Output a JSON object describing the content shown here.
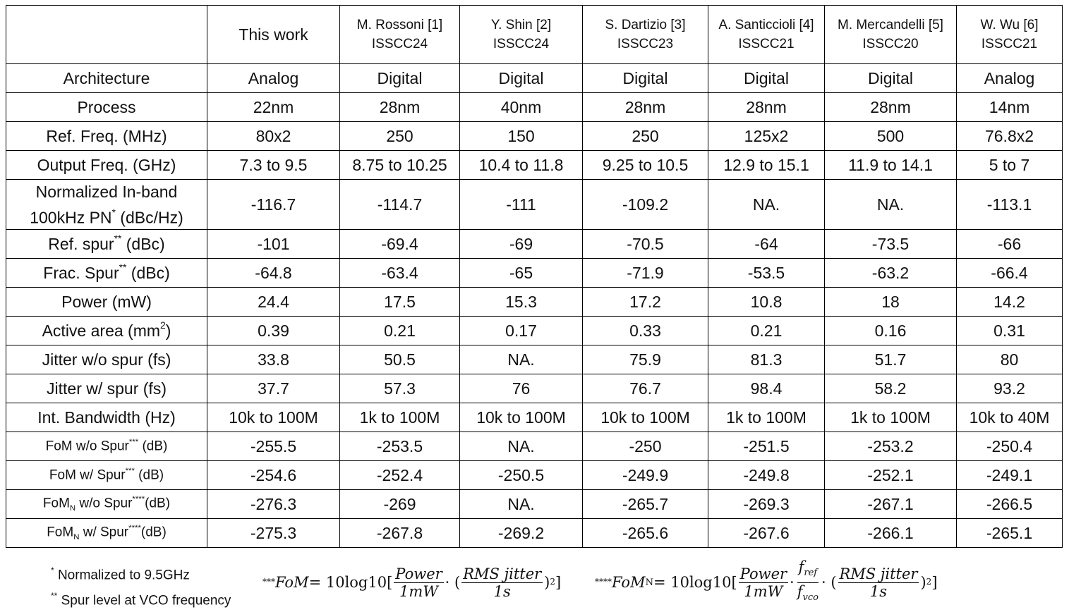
{
  "header": {
    "corner": "",
    "columns": [
      {
        "name": "This work",
        "venue": ""
      },
      {
        "name": "M. Rossoni [1]",
        "venue": "ISSCC24"
      },
      {
        "name": "Y. Shin [2]",
        "venue": "ISSCC24"
      },
      {
        "name": "S. Dartizio [3]",
        "venue": "ISSCC23"
      },
      {
        "name": "A. Santiccioli [4]",
        "venue": "ISSCC21"
      },
      {
        "name": "M. Mercandelli [5]",
        "venue": "ISSCC20"
      },
      {
        "name": "W. Wu [6]",
        "venue": "ISSCC21"
      }
    ]
  },
  "rows": {
    "architecture": {
      "label": "Architecture",
      "values": [
        "Analog",
        "Digital",
        "Digital",
        "Digital",
        "Digital",
        "Digital",
        "Analog"
      ]
    },
    "process": {
      "label": "Process",
      "values": [
        "22nm",
        "28nm",
        "40nm",
        "28nm",
        "28nm",
        "28nm",
        "14nm"
      ]
    },
    "ref_freq": {
      "label": "Ref. Freq. (MHz)",
      "values": [
        "80x2",
        "250",
        "150",
        "250",
        "125x2",
        "500",
        "76.8x2"
      ]
    },
    "output_freq": {
      "label": "Output Freq. (GHz)",
      "values": [
        "7.3 to 9.5",
        "8.75 to 10.25",
        "10.4 to 11.8",
        "9.25 to 10.5",
        "12.9 to 15.1",
        "11.9 to 14.1",
        "5 to 7"
      ]
    },
    "inband_pn": {
      "label_line1": "Normalized In-band",
      "label_line2_a": "100kHz PN",
      "label_mark": "*",
      "label_line2_b": " (dBc/Hz)",
      "values": [
        "-116.7",
        "-114.7",
        "-111",
        "-109.2",
        "NA.",
        "NA.",
        "-113.1"
      ]
    },
    "ref_spur": {
      "label_a": "Ref. spur",
      "label_mark": "**",
      "label_b": " (dBc)",
      "values": [
        "-101",
        "-69.4",
        "-69",
        "-70.5",
        "-64",
        "-73.5",
        "-66"
      ]
    },
    "frac_spur": {
      "label_a": "Frac. Spur",
      "label_mark": "**",
      "label_b": " (dBc)",
      "values": [
        "-64.8",
        "-63.4",
        "-65",
        "-71.9",
        "-53.5",
        "-63.2",
        "-66.4"
      ]
    },
    "power": {
      "label": "Power (mW)",
      "values": [
        "24.4",
        "17.5",
        "15.3",
        "17.2",
        "10.8",
        "18",
        "14.2"
      ]
    },
    "area": {
      "label_a": "Active area (mm",
      "label_sup": "2",
      "label_b": ")",
      "values": [
        "0.39",
        "0.21",
        "0.17",
        "0.33",
        "0.21",
        "0.16",
        "0.31"
      ]
    },
    "jitter_wo": {
      "label": "Jitter w/o spur (fs)",
      "values": [
        "33.8",
        "50.5",
        "NA.",
        "75.9",
        "81.3",
        "51.7",
        "80"
      ]
    },
    "jitter_w": {
      "label": "Jitter w/ spur (fs)",
      "values": [
        "37.7",
        "57.3",
        "76",
        "76.7",
        "98.4",
        "58.2",
        "93.2"
      ]
    },
    "int_bw": {
      "label": "Int. Bandwidth (Hz)",
      "values": [
        "10k to 100M",
        "1k to 100M",
        "10k to 100M",
        "10k to 100M",
        "1k to 100M",
        "1k to 100M",
        "10k to 40M"
      ]
    },
    "fom_wo": {
      "label_a": "FoM w/o Spur",
      "label_mark": "***",
      "label_b": " (dB)",
      "values": [
        "-255.5",
        "-253.5",
        "NA.",
        "-250",
        "-251.5",
        "-253.2",
        "-250.4"
      ]
    },
    "fom_w": {
      "label_a": "FoM w/ Spur",
      "label_mark": "***",
      "label_b": " (dB)",
      "values": [
        "-254.6",
        "-252.4",
        "-250.5",
        "-249.9",
        "-249.8",
        "-252.1",
        "-249.1"
      ]
    },
    "fomn_wo": {
      "label_a": "FoM",
      "label_sub": "N",
      "label_b": " w/o Spur",
      "label_mark": "****",
      "label_c": "(dB)",
      "values": [
        "-276.3",
        "-269",
        "NA.",
        "-265.7",
        "-269.3",
        "-267.1",
        "-266.5"
      ]
    },
    "fomn_w": {
      "label_a": "FoM",
      "label_sub": "N",
      "label_b": " w/ Spur",
      "label_mark": "****",
      "label_c": "(dB)",
      "values": [
        "-275.3",
        "-267.8",
        "-269.2",
        "-265.6",
        "-267.6",
        "-266.1",
        "-265.1"
      ]
    }
  },
  "footnotes": {
    "fn1_mark": "*",
    "fn1_text": " Normalized to 9.5GHz",
    "fn2_mark": "**",
    "fn2_text": " Spur level at VCO frequency"
  },
  "formulas": {
    "fom": {
      "mark": "***",
      "lhs": "FoM",
      "eq": " = 10log10[",
      "f1_num": "Power",
      "f1_den": "1mW",
      "dot": " · (",
      "f2_num": "RMS jitter",
      "f2_den": "1s",
      "close": ")",
      "power": "2",
      "end": "]"
    },
    "fomn": {
      "mark": "****",
      "lhs": "FoM",
      "lhs_sub": "N",
      "eq": " = 10log10[",
      "f1_num": "Power",
      "f1_den": "1mW",
      "dot1": " · ",
      "f2_num": "f",
      "f2_num_sub": "ref",
      "f2_den": "f",
      "f2_den_sub": "vco",
      "dot2": " · (",
      "f3_num": "RMS jitter",
      "f3_den": "1s",
      "close": ")",
      "power": "2",
      "end": "]"
    }
  }
}
